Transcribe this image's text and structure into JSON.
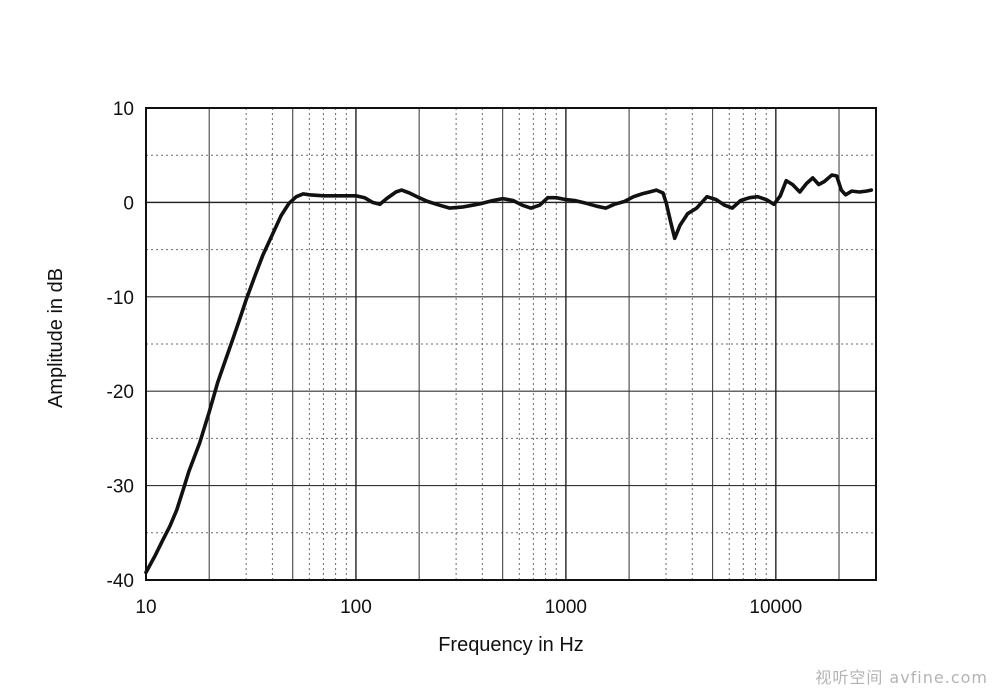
{
  "chart_data": {
    "type": "line",
    "title": "",
    "xlabel": "Frequency in Hz",
    "ylabel": "Amplitude in dB",
    "xscale": "log",
    "xlim": [
      10,
      30000
    ],
    "ylim": [
      -40,
      10
    ],
    "grid": true,
    "legend": "none",
    "xticks": [
      10,
      100,
      1000,
      10000
    ],
    "xtick_labels": [
      "10",
      "100",
      "1000",
      "10000"
    ],
    "yticks": [
      10,
      0,
      -10,
      -20,
      -30,
      -40
    ],
    "ytick_labels": [
      "10",
      "0",
      "-10",
      "-20",
      "-30",
      "-40"
    ],
    "series": [
      {
        "color": "#111111",
        "points": [
          [
            10,
            -39.2
          ],
          [
            11,
            -37.5
          ],
          [
            12,
            -35.8
          ],
          [
            13,
            -34.3
          ],
          [
            14,
            -32.6
          ],
          [
            15,
            -30.5
          ],
          [
            16,
            -28.5
          ],
          [
            18,
            -25.5
          ],
          [
            20,
            -22.2
          ],
          [
            22,
            -19.0
          ],
          [
            24,
            -16.6
          ],
          [
            26,
            -14.4
          ],
          [
            28,
            -12.3
          ],
          [
            30,
            -10.3
          ],
          [
            33,
            -7.8
          ],
          [
            36,
            -5.6
          ],
          [
            40,
            -3.4
          ],
          [
            44,
            -1.4
          ],
          [
            48,
            -0.1
          ],
          [
            52,
            0.6
          ],
          [
            56,
            0.9
          ],
          [
            60,
            0.8
          ],
          [
            70,
            0.7
          ],
          [
            80,
            0.7
          ],
          [
            90,
            0.7
          ],
          [
            100,
            0.7
          ],
          [
            110,
            0.5
          ],
          [
            120,
            0.0
          ],
          [
            130,
            -0.2
          ],
          [
            140,
            0.4
          ],
          [
            155,
            1.1
          ],
          [
            165,
            1.3
          ],
          [
            180,
            1.0
          ],
          [
            200,
            0.5
          ],
          [
            220,
            0.1
          ],
          [
            250,
            -0.3
          ],
          [
            280,
            -0.6
          ],
          [
            320,
            -0.5
          ],
          [
            360,
            -0.3
          ],
          [
            400,
            -0.1
          ],
          [
            450,
            0.2
          ],
          [
            500,
            0.4
          ],
          [
            560,
            0.2
          ],
          [
            620,
            -0.3
          ],
          [
            680,
            -0.6
          ],
          [
            750,
            -0.3
          ],
          [
            820,
            0.5
          ],
          [
            900,
            0.5
          ],
          [
            1000,
            0.3
          ],
          [
            1100,
            0.2
          ],
          [
            1250,
            -0.1
          ],
          [
            1400,
            -0.4
          ],
          [
            1550,
            -0.6
          ],
          [
            1700,
            -0.2
          ],
          [
            1900,
            0.1
          ],
          [
            2100,
            0.6
          ],
          [
            2300,
            0.9
          ],
          [
            2500,
            1.1
          ],
          [
            2700,
            1.3
          ],
          [
            2900,
            1.0
          ],
          [
            3000,
            0.0
          ],
          [
            3150,
            -2.0
          ],
          [
            3300,
            -3.8
          ],
          [
            3500,
            -2.4
          ],
          [
            3800,
            -1.2
          ],
          [
            4200,
            -0.6
          ],
          [
            4700,
            0.6
          ],
          [
            5200,
            0.3
          ],
          [
            5700,
            -0.3
          ],
          [
            6200,
            -0.6
          ],
          [
            6800,
            0.2
          ],
          [
            7500,
            0.5
          ],
          [
            8200,
            0.6
          ],
          [
            9000,
            0.3
          ],
          [
            9800,
            -0.2
          ],
          [
            10500,
            0.7
          ],
          [
            11200,
            2.3
          ],
          [
            12000,
            1.9
          ],
          [
            13000,
            1.1
          ],
          [
            14000,
            2.0
          ],
          [
            15000,
            2.6
          ],
          [
            16000,
            1.9
          ],
          [
            17000,
            2.2
          ],
          [
            18500,
            2.9
          ],
          [
            19500,
            2.8
          ],
          [
            20500,
            1.3
          ],
          [
            21500,
            0.8
          ],
          [
            23000,
            1.2
          ],
          [
            25000,
            1.1
          ],
          [
            27000,
            1.2
          ],
          [
            28500,
            1.3
          ]
        ]
      }
    ]
  },
  "watermark": {
    "text": "视听空间 avfine.com"
  }
}
